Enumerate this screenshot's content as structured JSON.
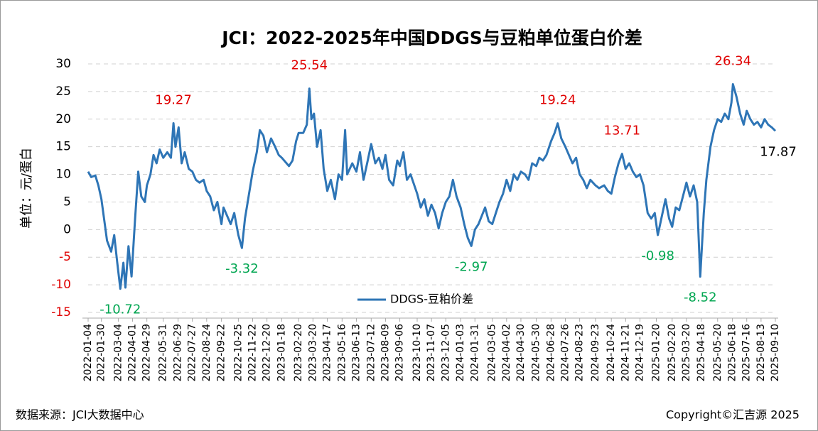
{
  "chart_data": {
    "type": "line",
    "title": "JCI：2022-2025年中国DDGS与豆粕单位蛋白价差",
    "y_label": "单位：元/蛋白",
    "source": "数据来源：JCI大数据中心",
    "copyright": "Copyright©汇吉源 2025",
    "ylim": [
      -15,
      30
    ],
    "yticks": [
      -15,
      -10,
      -5,
      0,
      5,
      10,
      15,
      20,
      25,
      30
    ],
    "grid": true,
    "xticks": [
      "2022-01-04",
      "2022-01-30",
      "2022-03-04",
      "2022-04-01",
      "2022-04-29",
      "2022-05-31",
      "2022-06-29",
      "2022-07-27",
      "2022-08-24",
      "2022-09-22",
      "2022-10-25",
      "2022-11-22",
      "2022-12-20",
      "2023-01-18",
      "2023-02-20",
      "2023-03-20",
      "2023-04-17",
      "2023-05-16",
      "2023-06-13",
      "2023-07-12",
      "2023-08-09",
      "2023-09-06",
      "2023-10-10",
      "2023-11-07",
      "2023-12-05",
      "2024-01-03",
      "2024-01-31",
      "2024-03-05",
      "2024-04-02",
      "2024-04-30",
      "2024-05-30",
      "2024-06-28",
      "2024-07-26",
      "2024-08-23",
      "2024-09-23",
      "2024-10-24",
      "2024-11-21",
      "2024-12-19",
      "2025-01-20",
      "2025-02-20",
      "2025-03-20",
      "2025-04-18",
      "2025-05-20",
      "2025-06-18",
      "2025-07-16",
      "2025-08-13",
      "2025-09-10"
    ],
    "x": [
      "2022-01-04",
      "2022-01-10",
      "2022-01-18",
      "2022-01-24",
      "2022-01-30",
      "2022-02-10",
      "2022-02-18",
      "2022-02-24",
      "2022-03-02",
      "2022-03-08",
      "2022-03-14",
      "2022-03-18",
      "2022-03-24",
      "2022-03-30",
      "2022-04-06",
      "2022-04-12",
      "2022-04-18",
      "2022-04-25",
      "2022-04-29",
      "2022-05-06",
      "2022-05-12",
      "2022-05-18",
      "2022-05-24",
      "2022-05-31",
      "2022-06-08",
      "2022-06-15",
      "2022-06-20",
      "2022-06-24",
      "2022-06-30",
      "2022-07-06",
      "2022-07-12",
      "2022-07-20",
      "2022-07-27",
      "2022-08-03",
      "2022-08-10",
      "2022-08-18",
      "2022-08-24",
      "2022-08-31",
      "2022-09-07",
      "2022-09-14",
      "2022-09-22",
      "2022-09-26",
      "2022-10-10",
      "2022-10-17",
      "2022-10-25",
      "2022-11-01",
      "2022-11-07",
      "2022-11-14",
      "2022-11-22",
      "2022-11-30",
      "2022-12-06",
      "2022-12-13",
      "2022-12-20",
      "2022-12-28",
      "2023-01-05",
      "2023-01-12",
      "2023-01-18",
      "2023-02-01",
      "2023-02-08",
      "2023-02-15",
      "2023-02-20",
      "2023-03-01",
      "2023-03-08",
      "2023-03-13",
      "2023-03-17",
      "2023-03-22",
      "2023-03-28",
      "2023-04-04",
      "2023-04-10",
      "2023-04-17",
      "2023-04-24",
      "2023-05-02",
      "2023-05-09",
      "2023-05-16",
      "2023-05-22",
      "2023-05-26",
      "2023-06-05",
      "2023-06-13",
      "2023-06-20",
      "2023-06-27",
      "2023-07-04",
      "2023-07-12",
      "2023-07-20",
      "2023-07-27",
      "2023-08-03",
      "2023-08-09",
      "2023-08-16",
      "2023-08-24",
      "2023-09-01",
      "2023-09-06",
      "2023-09-13",
      "2023-09-20",
      "2023-09-27",
      "2023-10-10",
      "2023-10-17",
      "2023-10-24",
      "2023-10-31",
      "2023-11-07",
      "2023-11-14",
      "2023-11-21",
      "2023-11-28",
      "2023-12-05",
      "2023-12-12",
      "2023-12-19",
      "2023-12-26",
      "2024-01-03",
      "2024-01-10",
      "2024-01-17",
      "2024-01-24",
      "2024-01-31",
      "2024-02-07",
      "2024-02-20",
      "2024-02-27",
      "2024-03-05",
      "2024-03-12",
      "2024-03-19",
      "2024-03-26",
      "2024-04-02",
      "2024-04-09",
      "2024-04-16",
      "2024-04-23",
      "2024-04-30",
      "2024-05-08",
      "2024-05-15",
      "2024-05-22",
      "2024-05-30",
      "2024-06-05",
      "2024-06-12",
      "2024-06-19",
      "2024-06-28",
      "2024-07-05",
      "2024-07-11",
      "2024-07-18",
      "2024-07-26",
      "2024-08-02",
      "2024-08-09",
      "2024-08-16",
      "2024-08-23",
      "2024-08-30",
      "2024-09-06",
      "2024-09-13",
      "2024-09-23",
      "2024-09-30",
      "2024-10-10",
      "2024-10-17",
      "2024-10-24",
      "2024-10-31",
      "2024-11-07",
      "2024-11-14",
      "2024-11-21",
      "2024-11-28",
      "2024-12-05",
      "2024-12-12",
      "2024-12-19",
      "2024-12-26",
      "2025-01-03",
      "2025-01-10",
      "2025-01-17",
      "2025-01-23",
      "2025-02-07",
      "2025-02-14",
      "2025-02-20",
      "2025-02-27",
      "2025-03-06",
      "2025-03-13",
      "2025-03-20",
      "2025-03-27",
      "2025-04-03",
      "2025-04-10",
      "2025-04-16",
      "2025-04-23",
      "2025-04-28",
      "2025-05-06",
      "2025-05-13",
      "2025-05-20",
      "2025-05-27",
      "2025-06-03",
      "2025-06-10",
      "2025-06-16",
      "2025-06-19",
      "2025-06-26",
      "2025-07-03",
      "2025-07-10",
      "2025-07-16",
      "2025-07-23",
      "2025-07-30",
      "2025-08-06",
      "2025-08-13",
      "2025-08-20",
      "2025-08-27",
      "2025-09-03",
      "2025-09-10"
    ],
    "series": [
      {
        "name": "DDGS-豆粕价差",
        "color": "#2e75b6",
        "values": [
          10.5,
          9.5,
          9.8,
          8,
          5.5,
          -2,
          -4,
          -1,
          -6,
          -10.72,
          -6,
          -10.5,
          -3,
          -8.5,
          2,
          10.5,
          6,
          5,
          8,
          10,
          13.5,
          12,
          14.5,
          13,
          14,
          13,
          19.27,
          15,
          18.5,
          12,
          14,
          11,
          10.5,
          9,
          8.5,
          9,
          7,
          6,
          3.5,
          5,
          1,
          4,
          1,
          3,
          -1,
          -3.32,
          2,
          6,
          10.5,
          14,
          18,
          17,
          14,
          16.5,
          15,
          13.5,
          13,
          11.5,
          12.5,
          16,
          17.5,
          17.5,
          19,
          25.54,
          20,
          21,
          15,
          18,
          11,
          7,
          9,
          5.5,
          10,
          9,
          18,
          10,
          12,
          10.5,
          14,
          9,
          12,
          15.5,
          12,
          13,
          11,
          13.5,
          9,
          8,
          12.5,
          11.5,
          14,
          9,
          10,
          6.5,
          4,
          5.5,
          2.5,
          4.5,
          3,
          0.2,
          3,
          5,
          6,
          9,
          6,
          4,
          1,
          -1.5,
          -2.97,
          0,
          1,
          4,
          1.5,
          1,
          3,
          5,
          6.5,
          9,
          7,
          10,
          9,
          10.5,
          10,
          9,
          12,
          11.5,
          13,
          12.5,
          13.5,
          16,
          17.5,
          19.24,
          16.5,
          15,
          13.5,
          12,
          13,
          10,
          9,
          7.5,
          9,
          8,
          7.5,
          8,
          7,
          6.5,
          9.5,
          12,
          13.71,
          11,
          12,
          10.5,
          9.5,
          10,
          8,
          3,
          2,
          3,
          -0.98,
          5.5,
          2,
          0.5,
          4,
          3.5,
          6,
          8.5,
          6,
          8,
          5,
          -8.52,
          3,
          9,
          15,
          18,
          20,
          19.5,
          21,
          20,
          23,
          26.34,
          24,
          21,
          19,
          21.5,
          20,
          19,
          19.5,
          18.5,
          20,
          19,
          18.5,
          17.87
        ]
      }
    ],
    "annotations": [
      {
        "x": "2022-03-08",
        "value": -10.72,
        "color": "#00a651"
      },
      {
        "x": "2022-06-20",
        "value": 19.27,
        "color": "#e00000"
      },
      {
        "x": "2022-11-01",
        "value": -3.32,
        "color": "#00a651"
      },
      {
        "x": "2023-03-13",
        "value": 25.54,
        "color": "#e00000"
      },
      {
        "x": "2024-01-24",
        "value": -2.97,
        "color": "#00a651"
      },
      {
        "x": "2024-07-11",
        "value": 19.24,
        "color": "#e00000"
      },
      {
        "x": "2024-11-14",
        "value": 13.71,
        "color": "#e00000"
      },
      {
        "x": "2025-01-23",
        "value": -0.98,
        "color": "#00a651"
      },
      {
        "x": "2025-04-16",
        "value": -8.52,
        "color": "#00a651"
      },
      {
        "x": "2025-06-19",
        "value": 26.34,
        "color": "#e00000"
      },
      {
        "x": "2025-09-10",
        "value": 17.87,
        "color": "#000000"
      }
    ]
  }
}
